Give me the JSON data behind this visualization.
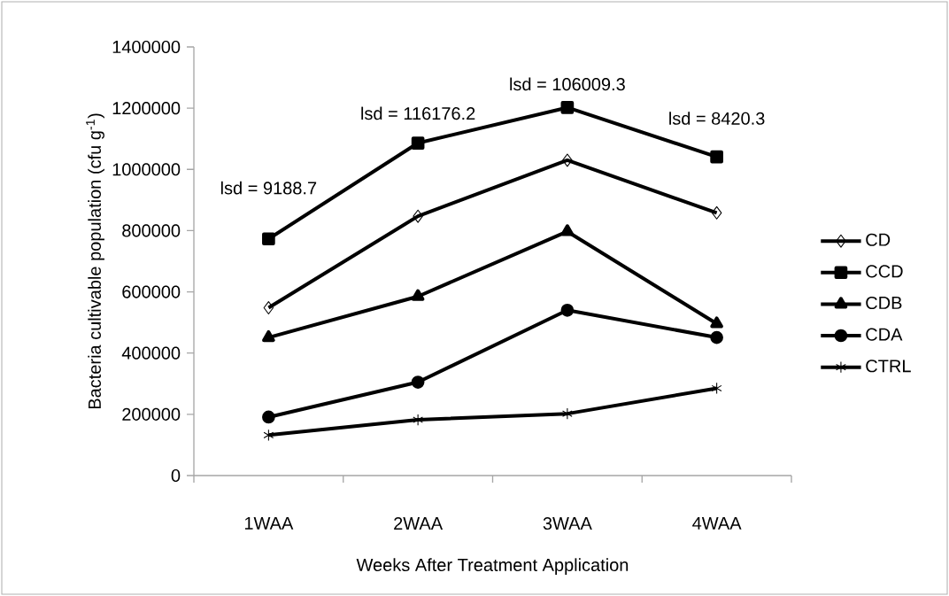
{
  "chart_data": {
    "type": "line",
    "xlabel": "Weeks After Treatment Application",
    "ylabel": "Bacteria cultivable population (cfu g$^{-1}$)",
    "categories": [
      "1WAA",
      "2WAA",
      "3WAA",
      "4WAA"
    ],
    "series": [
      {
        "name": "CD",
        "color": "#000000",
        "marker": "diamond",
        "values": [
          548000,
          847000,
          1030000,
          858000
        ]
      },
      {
        "name": "CCD",
        "color": "#000000",
        "marker": "square",
        "values": [
          773000,
          1086000,
          1202000,
          1041000
        ]
      },
      {
        "name": "CDB",
        "color": "#000000",
        "marker": "triangle",
        "values": [
          451000,
          585000,
          797000,
          496000
        ]
      },
      {
        "name": "CDA",
        "color": "#000000",
        "marker": "circle",
        "values": [
          191000,
          305000,
          540000,
          451000
        ]
      },
      {
        "name": "CTRL",
        "color": "#000000",
        "marker": "cross",
        "values": [
          132000,
          182000,
          202000,
          285000
        ]
      }
    ],
    "ylim": [
      0,
      1400000
    ],
    "yticks": [
      0,
      200000,
      400000,
      600000,
      800000,
      1000000,
      1200000,
      1400000
    ],
    "annotations": [
      "lsd = 9188.7",
      "lsd = 116176.2",
      "lsd = 106009.3",
      "lsd = 8420.3"
    ],
    "grid": false,
    "legend": "right",
    "line_style": "solid"
  }
}
